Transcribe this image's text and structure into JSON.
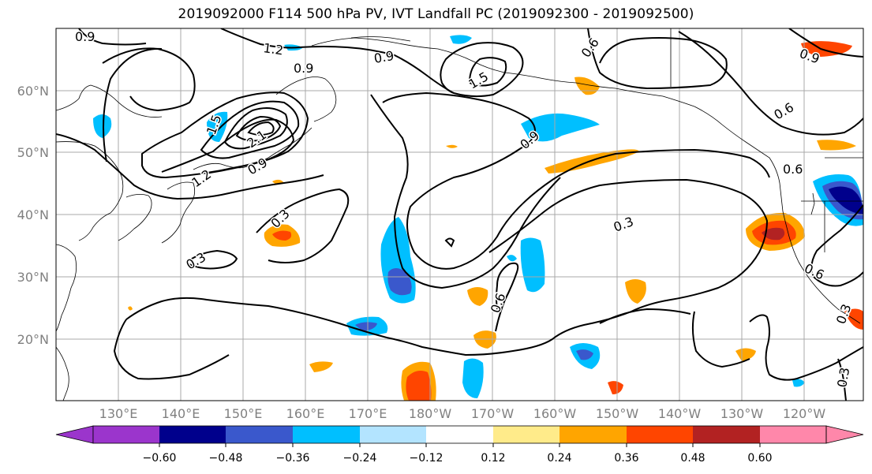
{
  "title": "2019092000 F114 500 hPa PV, IVT Landfall PC (2019092300 - 2019092500)",
  "map": {
    "lat_ticks": [
      "60°N",
      "50°N",
      "40°N",
      "30°N",
      "20°N"
    ],
    "lon_ticks": [
      "130°E",
      "140°E",
      "150°E",
      "160°E",
      "170°E",
      "180°W",
      "170°W",
      "160°W",
      "150°W",
      "140°W",
      "130°W",
      "120°W"
    ],
    "contour_labels": [
      "0.9",
      "1.2",
      "0.9",
      "0.9",
      "1.5",
      "0.6",
      "1.5",
      "2.1",
      "0.9",
      "1.2",
      "0.9",
      "0.6",
      "0.6",
      "0.3",
      "0.3",
      "0.3",
      "0.6",
      "0.6",
      "0.3",
      "0.3",
      "0.9"
    ],
    "colors": {
      "coast": "#000000",
      "grid": "#a8a8a8",
      "contour": "#000000"
    }
  },
  "colorbar": {
    "colors": [
      "#9b35cc",
      "#00008c",
      "#3a58cc",
      "#00bfff",
      "#b3e4ff",
      "#ffffff",
      "#ffeb8a",
      "#ffa500",
      "#ff4500",
      "#b22222",
      "#ff87aa"
    ],
    "tick_labels": [
      "−0.60",
      "−0.48",
      "−0.36",
      "−0.24",
      "−0.12",
      "0.12",
      "0.24",
      "0.36",
      "0.48",
      "0.60"
    ]
  }
}
